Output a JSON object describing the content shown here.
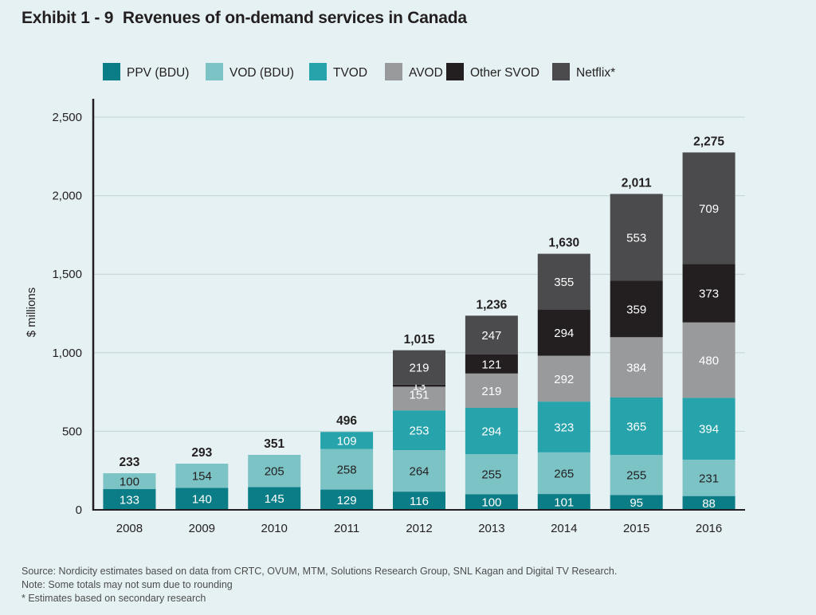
{
  "exhibit_label": "Exhibit 1 - 9",
  "chart_data": {
    "type": "bar",
    "stacked": true,
    "title": "Revenues of on-demand services in Canada",
    "xlabel": "",
    "ylabel": "$ millions",
    "ylim": [
      0,
      2500
    ],
    "yticks": [
      {
        "value": 0,
        "label": "0"
      },
      {
        "value": 500,
        "label": "500"
      },
      {
        "value": 1000,
        "label": "1,000"
      },
      {
        "value": 1500,
        "label": "1,500"
      },
      {
        "value": 2000,
        "label": "2,000"
      },
      {
        "value": 2500,
        "label": "2,500"
      }
    ],
    "grid": true,
    "legend_position": "top",
    "categories": [
      "2008",
      "2009",
      "2010",
      "2011",
      "2012",
      "2013",
      "2014",
      "2015",
      "2016"
    ],
    "series": [
      {
        "name": "PPV (BDU)",
        "color": "#0a7d86",
        "label_color": "#ffffff",
        "values": [
          133,
          140,
          145,
          129,
          116,
          100,
          101,
          95,
          88
        ],
        "labels": [
          "133",
          "140",
          "145",
          "129",
          "116",
          "100",
          "101",
          "95",
          "88"
        ]
      },
      {
        "name": "VOD (BDU)",
        "color": "#7cc3c6",
        "label_color": "#231f20",
        "values": [
          100,
          154,
          205,
          258,
          264,
          255,
          265,
          255,
          231
        ],
        "labels": [
          "100",
          "154",
          "205",
          "258",
          "264",
          "255",
          "265",
          "255",
          "231"
        ]
      },
      {
        "name": "TVOD",
        "color": "#26a3ab",
        "label_color": "#ffffff",
        "values": [
          0,
          0,
          0,
          109,
          253,
          294,
          323,
          365,
          394
        ],
        "labels": [
          "",
          "",
          "",
          "109",
          "253",
          "294",
          "323",
          "365",
          "394"
        ]
      },
      {
        "name": "AVOD",
        "color": "#999a9c",
        "label_color": "#ffffff",
        "values": [
          0,
          0,
          0,
          0,
          151,
          219,
          292,
          384,
          480
        ],
        "labels": [
          "",
          "",
          "",
          "",
          "151",
          "219",
          "292",
          "384",
          "480"
        ]
      },
      {
        "name": "Other SVOD",
        "color": "#231f20",
        "label_color": "#ffffff",
        "values": [
          0,
          0,
          0,
          0,
          13,
          121,
          294,
          359,
          373
        ],
        "labels": [
          "",
          "",
          "",
          "",
          "13",
          "121",
          "294",
          "359",
          "373"
        ]
      },
      {
        "name": "Netflix*",
        "color": "#4b4b4d",
        "label_color": "#ffffff",
        "values": [
          0,
          0,
          0,
          0,
          219,
          247,
          355,
          553,
          709
        ],
        "labels": [
          "",
          "",
          "",
          "",
          "219",
          "247",
          "355",
          "553",
          "709"
        ]
      }
    ],
    "totals": [
      233,
      293,
      351,
      496,
      1015,
      1236,
      1630,
      2011,
      2275
    ],
    "total_labels": [
      "233",
      "293",
      "351",
      "496",
      "1,015",
      "1,236",
      "1,630",
      "2,011",
      "2,275"
    ]
  },
  "notes": {
    "source": "Source: Nordicity estimates based on data from CRTC, OVUM, MTM, Solutions Research Group, SNL Kagan and Digital TV Research.",
    "rounding": "Note: Some totals may not sum due to rounding",
    "estimate": "* Estimates based on secondary research"
  }
}
